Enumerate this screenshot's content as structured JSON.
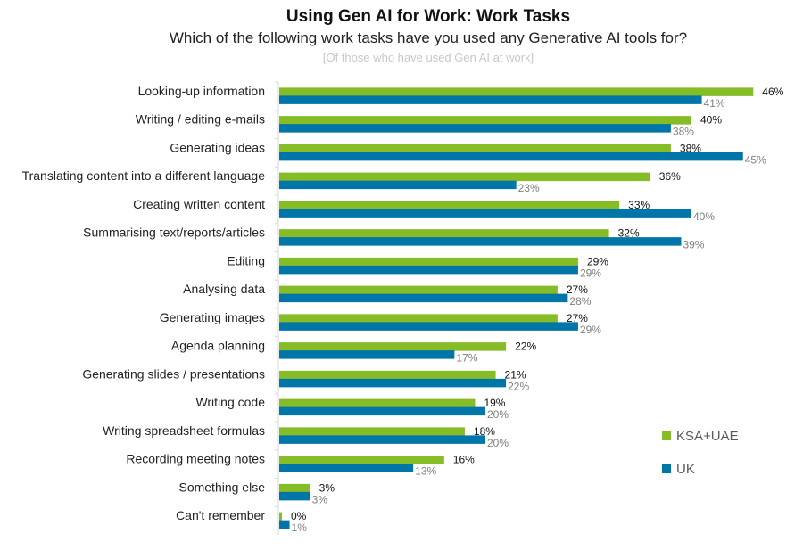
{
  "chart_data": {
    "type": "bar",
    "orientation": "horizontal",
    "title": "Using Gen AI for Work: Work Tasks",
    "subtitle": "Which of the following work tasks have you used any Generative AI tools for?",
    "note": "[Of those who have used Gen AI at work]",
    "categories": [
      "Looking-up information",
      "Writing / editing e-mails",
      "Generating ideas",
      "Translating content into a different language",
      "Creating written content",
      "Summarising text/reports/articles",
      "Editing",
      "Analysing data",
      "Generating images",
      "Agenda planning",
      "Generating slides / presentations",
      "Writing code",
      "Writing spreadsheet formulas",
      "Recording meeting notes",
      "Something else",
      "Can't remember"
    ],
    "series": [
      {
        "name": "KSA+UAE",
        "color": "#86bc25",
        "label_color": "#111111",
        "values": [
          46,
          40,
          38,
          36,
          33,
          32,
          29,
          27,
          27,
          22,
          21,
          19,
          18,
          16,
          3,
          0
        ]
      },
      {
        "name": "UK",
        "color": "#0076a8",
        "label_color": "#7f7f7f",
        "values": [
          41,
          38,
          45,
          23,
          40,
          39,
          29,
          28,
          29,
          17,
          22,
          20,
          20,
          13,
          3,
          1
        ]
      }
    ],
    "value_suffix": "%",
    "xlim": [
      0,
      50
    ],
    "grid": false,
    "legend_position": "right"
  }
}
